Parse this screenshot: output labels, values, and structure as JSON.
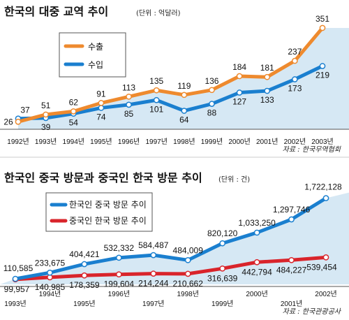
{
  "colors": {
    "export_line": "#ee8a2e",
    "import_line": "#1a7fcf",
    "korean_visits_line": "#1a7fcf",
    "chinese_visits_line": "#d9242b",
    "band_fill": "#d6e8f4",
    "marker_fill": "#ffffff"
  },
  "chart_data": [
    {
      "type": "line",
      "title": "한국의 대중 교역 추이",
      "unit_note": "(단위 : 억달러)",
      "source": "자료 : 한국무역협회",
      "categories": [
        "1992년",
        "1993년",
        "1994년",
        "1995년",
        "1996년",
        "1997년",
        "1998년",
        "1999년",
        "2000년",
        "2001년",
        "2002년",
        "2003년"
      ],
      "series": [
        {
          "name": "수출",
          "values": [
            26,
            51,
            62,
            91,
            113,
            135,
            119,
            136,
            184,
            181,
            237,
            351
          ]
        },
        {
          "name": "수입",
          "values": [
            37,
            39,
            54,
            74,
            85,
            101,
            64,
            88,
            127,
            133,
            173,
            219
          ]
        }
      ],
      "ylim": [
        0,
        380
      ],
      "grid": false,
      "legend": "top-left"
    },
    {
      "type": "line",
      "title": "한국인 중국 방문과 중국인 한국 방문 추이",
      "unit_note": "(단위 : 건)",
      "source": "자료 : 한국관광공사",
      "categories": [
        "1993년",
        "1994년",
        "1995년",
        "1996년",
        "1997년",
        "1998년",
        "1999년",
        "2000년",
        "2001년",
        "2002년"
      ],
      "series": [
        {
          "name": "한국인 중국 방문 추이",
          "values": [
            110585,
            233675,
            404421,
            532332,
            584487,
            484009,
            820120,
            1033250,
            1297746,
            1722128
          ]
        },
        {
          "name": "중국인 한국 방문 추이",
          "values": [
            99957,
            140985,
            178359,
            199604,
            214244,
            210662,
            316639,
            442794,
            484227,
            539454
          ]
        }
      ],
      "value_labels": {
        "series0": [
          "110,585",
          "233,675",
          "404,421",
          "532,332",
          "584,487",
          "484,009",
          "820,120",
          "1,033,250",
          "1,297,746",
          "1,722,128"
        ],
        "series1": [
          "99,957",
          "140,985",
          "178,359",
          "199,604",
          "214,244",
          "210,662",
          "316,639",
          "442,794",
          "484,227",
          "539,454"
        ]
      },
      "ylim": [
        0,
        1800000
      ],
      "grid": false,
      "legend": "top-left"
    }
  ]
}
